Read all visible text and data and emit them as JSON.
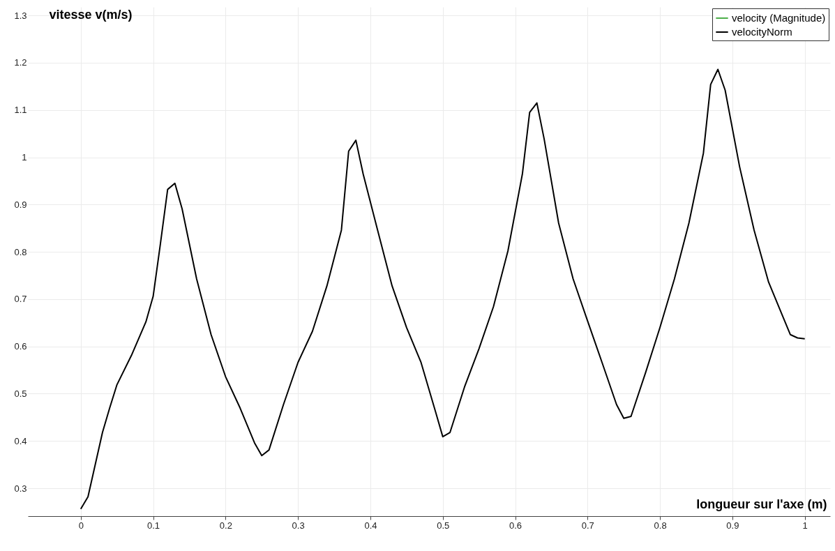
{
  "chart_data": {
    "type": "line",
    "xlabel": "longueur sur l'axe (m)",
    "ylabel": "vitesse v(m/s)",
    "x": [
      0,
      0.01,
      0.03,
      0.04,
      0.05,
      0.07,
      0.09,
      0.1,
      0.11,
      0.12,
      0.13,
      0.14,
      0.16,
      0.18,
      0.2,
      0.22,
      0.24,
      0.25,
      0.26,
      0.28,
      0.3,
      0.32,
      0.34,
      0.36,
      0.37,
      0.38,
      0.39,
      0.41,
      0.43,
      0.45,
      0.47,
      0.49,
      0.5,
      0.51,
      0.53,
      0.55,
      0.57,
      0.59,
      0.61,
      0.62,
      0.63,
      0.64,
      0.66,
      0.68,
      0.7,
      0.72,
      0.74,
      0.75,
      0.76,
      0.78,
      0.8,
      0.82,
      0.84,
      0.86,
      0.87,
      0.88,
      0.89,
      0.91,
      0.93,
      0.95,
      0.97,
      0.98,
      0.99,
      1
    ],
    "series": [
      {
        "name": "velocity (Magnitude)",
        "color": "#4daf4a",
        "values": [
          null,
          null,
          null,
          null,
          null,
          null,
          null,
          null,
          null,
          null,
          null,
          null,
          null,
          null,
          null,
          null,
          null,
          null,
          null,
          null,
          null,
          null,
          null,
          null,
          null,
          null,
          null,
          null,
          null,
          null,
          null,
          null,
          null,
          null,
          null,
          null,
          null,
          null,
          null,
          null,
          null,
          null,
          null,
          null,
          null,
          null,
          null,
          null,
          null,
          null,
          null,
          null,
          null,
          null,
          null,
          null,
          null,
          null,
          null,
          null,
          null,
          null,
          null,
          null
        ]
      },
      {
        "name": "velocityNorm",
        "color": "#000000",
        "values": [
          0.256,
          0.282,
          0.418,
          0.47,
          0.519,
          0.581,
          0.652,
          0.706,
          0.817,
          0.932,
          0.945,
          0.891,
          0.743,
          0.625,
          0.536,
          0.47,
          0.396,
          0.369,
          0.381,
          0.477,
          0.566,
          0.632,
          0.728,
          0.846,
          1.013,
          1.036,
          0.965,
          0.846,
          0.728,
          0.64,
          0.566,
          0.462,
          0.409,
          0.418,
          0.514,
          0.595,
          0.684,
          0.802,
          0.965,
          1.095,
          1.115,
          1.039,
          0.861,
          0.743,
          0.654,
          0.566,
          0.477,
          0.448,
          0.452,
          0.544,
          0.64,
          0.743,
          0.861,
          1.009,
          1.154,
          1.186,
          1.142,
          0.98,
          0.846,
          0.736,
          0.662,
          0.625,
          0.618,
          0.616
        ]
      }
    ],
    "xlim": [
      -0.073,
      1.035
    ],
    "xticks": [
      0,
      0.1,
      0.2,
      0.3,
      0.4,
      0.5,
      0.6,
      0.7,
      0.8,
      0.9,
      1
    ],
    "ylim": [
      0.241,
      1.318
    ],
    "yticks": [
      0.3,
      0.4,
      0.5,
      0.6,
      0.7,
      0.8,
      0.9,
      1,
      1.1,
      1.2,
      1.3
    ],
    "grid": true,
    "legend": "top right"
  }
}
